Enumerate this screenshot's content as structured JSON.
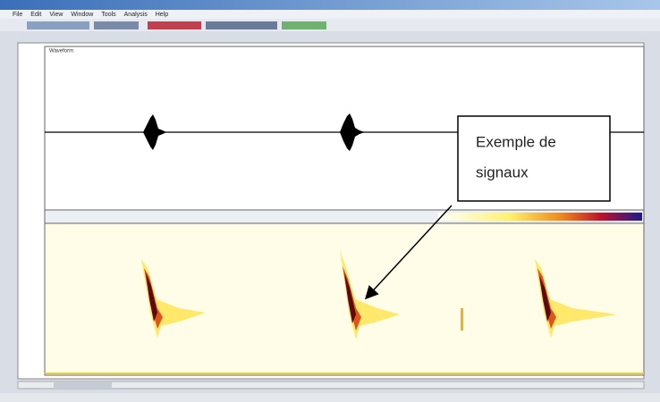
{
  "window": {
    "menu": [
      "File",
      "Edit",
      "View",
      "Window",
      "Tools",
      "Analysis",
      "Help"
    ]
  },
  "waveform": {
    "label": "Waveform"
  },
  "annotation": {
    "lines": [
      "Exemple de",
      "signaux"
    ]
  }
}
